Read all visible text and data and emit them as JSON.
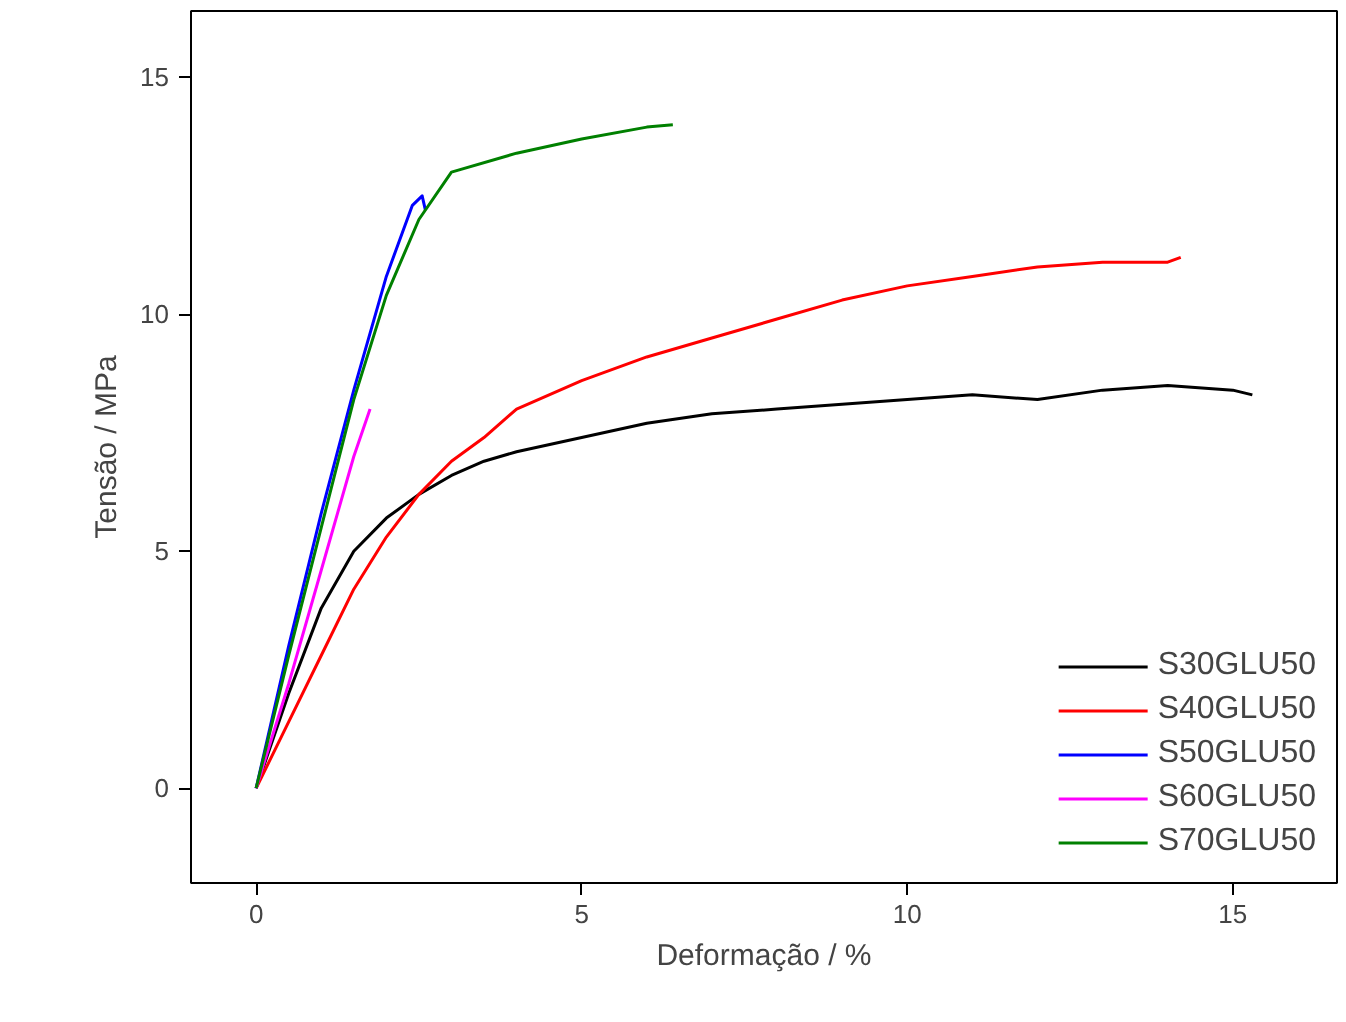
{
  "chart_data": {
    "type": "line",
    "xlabel": "Deformação / %",
    "ylabel": "Tensão / MPa",
    "xlim": [
      -1,
      16.6
    ],
    "ylim": [
      -2,
      16.4
    ],
    "xticks": [
      0,
      5,
      10,
      15
    ],
    "yticks": [
      0,
      5,
      10,
      15
    ],
    "grid": false,
    "legend": "bottom right",
    "series": [
      {
        "name": "S30GLU50",
        "color": "#000000",
        "x": [
          0,
          0.5,
          1,
          1.5,
          2,
          2.5,
          3,
          3.5,
          4,
          5,
          6,
          7,
          8,
          9,
          10,
          11,
          12,
          13,
          14,
          15,
          15.3
        ],
        "values": [
          0,
          2,
          3.8,
          5,
          5.7,
          6.2,
          6.6,
          6.9,
          7.1,
          7.4,
          7.7,
          7.9,
          8.0,
          8.1,
          8.2,
          8.3,
          8.2,
          8.4,
          8.5,
          8.4,
          8.3
        ]
      },
      {
        "name": "S40GLU50",
        "color": "#ff0000",
        "x": [
          0,
          0.5,
          1,
          1.5,
          2,
          2.5,
          3,
          3.5,
          4,
          5,
          6,
          7,
          8,
          9,
          10,
          11,
          12,
          13,
          14,
          14.2
        ],
        "values": [
          0,
          1.4,
          2.8,
          4.2,
          5.3,
          6.2,
          6.9,
          7.4,
          8,
          8.6,
          9.1,
          9.5,
          9.9,
          10.3,
          10.6,
          10.8,
          11,
          11.1,
          11.1,
          11.2
        ]
      },
      {
        "name": "S50GLU50",
        "color": "#0000ff",
        "x": [
          0,
          0.5,
          1,
          1.5,
          2,
          2.4,
          2.55,
          2.6
        ],
        "values": [
          0,
          3,
          5.8,
          8.4,
          10.8,
          12.3,
          12.5,
          12.2
        ]
      },
      {
        "name": "S60GLU50",
        "color": "#ff00ff",
        "x": [
          0,
          0.5,
          1,
          1.5,
          1.75
        ],
        "values": [
          0,
          2.2,
          4.6,
          7,
          8
        ]
      },
      {
        "name": "S70GLU50",
        "color": "#008000",
        "x": [
          0,
          0.5,
          1,
          1.5,
          2,
          2.5,
          3,
          4,
          5,
          6,
          6.4
        ],
        "values": [
          0,
          2.8,
          5.5,
          8.2,
          10.4,
          12,
          13,
          13.4,
          13.7,
          13.95,
          14.0
        ]
      }
    ]
  }
}
